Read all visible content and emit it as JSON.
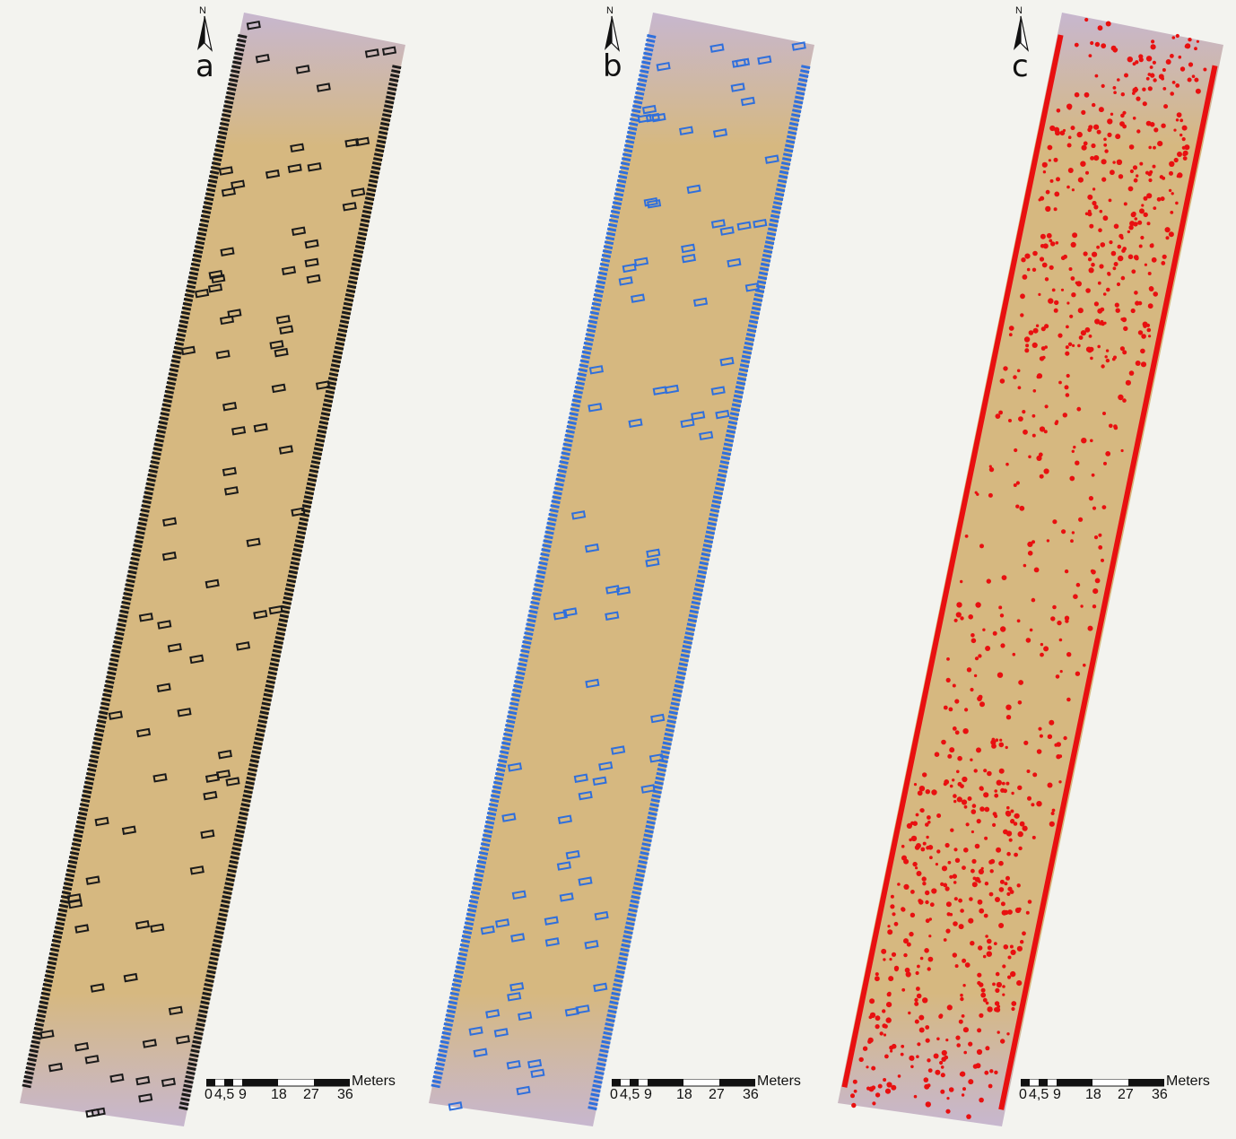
{
  "panels": [
    {
      "letter": "a",
      "marker_color": "#1a1a1a",
      "marker_style": "rectangles"
    },
    {
      "letter": "b",
      "marker_color": "#2f6fdc",
      "marker_style": "rectangles"
    },
    {
      "letter": "c",
      "marker_color": "#e81010",
      "marker_style": "points"
    }
  ],
  "north_arrow": {
    "label": "N",
    "icon": "north-arrow-icon"
  },
  "scale_bar": {
    "units": "Meters",
    "ticks": [
      "0",
      "4,5",
      "9",
      "18",
      "27",
      "36"
    ]
  },
  "colors": {
    "field": "#d6b880",
    "field_edge": "#c7b7cf",
    "background": "#f3f3ef"
  }
}
